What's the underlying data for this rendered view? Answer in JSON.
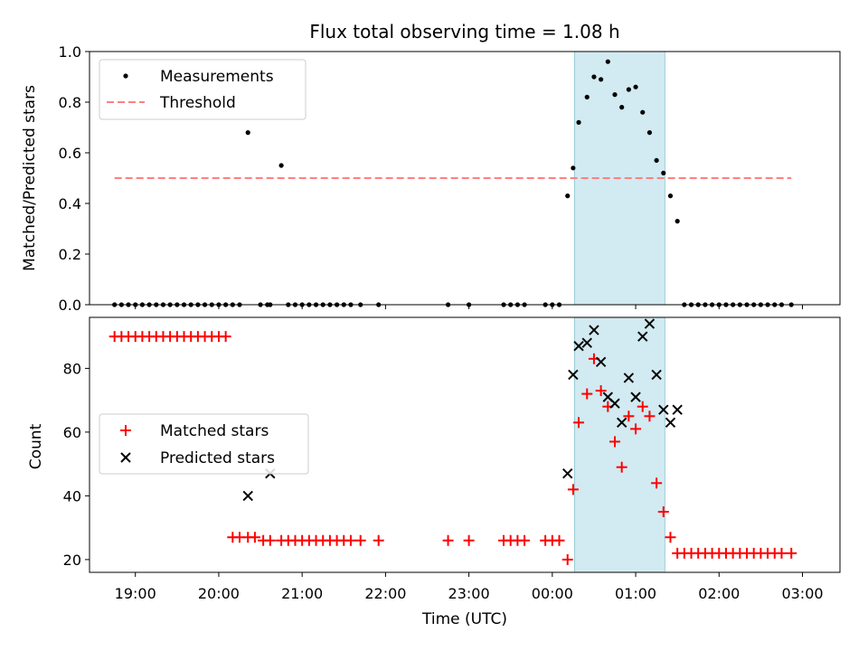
{
  "title": "Flux total observing time = 1.08 h",
  "colors": {
    "measurements": "#000000",
    "threshold": "#ff8080",
    "matched": "#ff0000",
    "predicted": "#000000",
    "shade": "#add8e6"
  },
  "chart_data": [
    {
      "type": "scatter",
      "ylabel": "Matched/Predicted stars",
      "xlim_hours": [
        18.45,
        27.45
      ],
      "ylim": [
        0,
        1.0
      ],
      "yticks": [
        "0.0",
        "0.2",
        "0.4",
        "0.6",
        "0.8",
        "1.0"
      ],
      "shaded_x_range": [
        "00:16",
        "01:21"
      ],
      "threshold": {
        "name": "Threshold",
        "y": 0.5,
        "x_range": [
          "18:45",
          "02:52"
        ]
      },
      "legend": {
        "placement": "upper-left",
        "entries": [
          "Measurements",
          "Threshold"
        ]
      },
      "series": [
        {
          "name": "Measurements",
          "x": [
            "18:45",
            "18:50",
            "18:55",
            "19:00",
            "19:05",
            "19:10",
            "19:15",
            "19:20",
            "19:25",
            "19:30",
            "19:35",
            "19:40",
            "19:45",
            "19:50",
            "19:55",
            "20:00",
            "20:05",
            "20:10",
            "20:15",
            "20:21",
            "20:30",
            "20:35",
            "20:37",
            "20:45",
            "20:50",
            "20:55",
            "21:00",
            "21:05",
            "21:10",
            "21:15",
            "21:20",
            "21:25",
            "21:30",
            "21:35",
            "21:42",
            "21:55",
            "22:45",
            "23:00",
            "23:25",
            "23:30",
            "23:35",
            "23:40",
            "23:55",
            "00:00",
            "00:05",
            "00:11",
            "00:15",
            "00:19",
            "00:25",
            "00:30",
            "00:35",
            "00:40",
            "00:45",
            "00:50",
            "00:55",
            "01:00",
            "01:05",
            "01:10",
            "01:15",
            "01:20",
            "01:25",
            "01:30",
            "01:35",
            "01:40",
            "01:45",
            "01:50",
            "01:55",
            "02:00",
            "02:05",
            "02:10",
            "02:15",
            "02:20",
            "02:25",
            "02:30",
            "02:35",
            "02:40",
            "02:45",
            "02:52"
          ],
          "y": [
            0,
            0,
            0,
            0,
            0,
            0,
            0,
            0,
            0,
            0,
            0,
            0,
            0,
            0,
            0,
            0,
            0,
            0,
            0,
            0.68,
            0,
            0,
            0,
            0.55,
            0,
            0,
            0,
            0,
            0,
            0,
            0,
            0,
            0,
            0,
            0,
            0,
            0,
            0,
            0,
            0,
            0,
            0,
            0,
            0,
            0,
            0.43,
            0.54,
            0.72,
            0.82,
            0.9,
            0.89,
            0.96,
            0.83,
            0.78,
            0.85,
            0.86,
            0.76,
            0.68,
            0.57,
            0.52,
            0.43,
            0.33,
            0,
            0,
            0,
            0,
            0,
            0,
            0,
            0,
            0,
            0,
            0,
            0,
            0,
            0,
            0,
            0
          ]
        }
      ]
    },
    {
      "type": "scatter",
      "ylabel": "Count",
      "xlabel": "Time (UTC)",
      "xlim_hours": [
        18.45,
        27.45
      ],
      "ylim": [
        16,
        96
      ],
      "yticks": [
        "20",
        "40",
        "60",
        "80"
      ],
      "xticks": [
        "19:00",
        "20:00",
        "21:00",
        "22:00",
        "23:00",
        "00:00",
        "01:00",
        "02:00",
        "03:00"
      ],
      "shaded_x_range": [
        "00:16",
        "01:21"
      ],
      "legend": {
        "placement": "center-left",
        "entries": [
          "Matched stars",
          "Predicted stars"
        ]
      },
      "series": [
        {
          "name": "Matched stars",
          "marker": "plus",
          "x": [
            "18:45",
            "18:50",
            "18:55",
            "19:00",
            "19:05",
            "19:10",
            "19:15",
            "19:20",
            "19:25",
            "19:30",
            "19:35",
            "19:40",
            "19:45",
            "19:50",
            "19:55",
            "20:00",
            "20:05",
            "20:10",
            "20:15",
            "20:21",
            "20:26",
            "20:32",
            "20:37",
            "20:45",
            "20:50",
            "20:55",
            "21:00",
            "21:05",
            "21:10",
            "21:15",
            "21:20",
            "21:25",
            "21:30",
            "21:35",
            "21:42",
            "21:55",
            "22:45",
            "23:00",
            "23:25",
            "23:30",
            "23:35",
            "23:40",
            "23:55",
            "00:00",
            "00:05",
            "00:11",
            "00:15",
            "00:19",
            "00:25",
            "00:30",
            "00:35",
            "00:40",
            "00:45",
            "00:50",
            "00:55",
            "01:00",
            "01:05",
            "01:10",
            "01:15",
            "01:20",
            "01:25",
            "01:30",
            "01:35",
            "01:40",
            "01:45",
            "01:50",
            "01:55",
            "02:00",
            "02:05",
            "02:10",
            "02:15",
            "02:20",
            "02:25",
            "02:30",
            "02:35",
            "02:40",
            "02:45",
            "02:52"
          ],
          "y": [
            90,
            90,
            90,
            90,
            90,
            90,
            90,
            90,
            90,
            90,
            90,
            90,
            90,
            90,
            90,
            90,
            90,
            27,
            27,
            27,
            27,
            26,
            26,
            26,
            26,
            26,
            26,
            26,
            26,
            26,
            26,
            26,
            26,
            26,
            26,
            26,
            26,
            26,
            26,
            26,
            26,
            26,
            26,
            26,
            26,
            20,
            42,
            63,
            72,
            83,
            73,
            68,
            57,
            49,
            65,
            61,
            68,
            65,
            44,
            35,
            27,
            22,
            22,
            22,
            22,
            22,
            22,
            22,
            22,
            22,
            22,
            22,
            22,
            22,
            22,
            22,
            22,
            22
          ]
        },
        {
          "name": "Predicted stars",
          "marker": "x",
          "x": [
            "20:21",
            "20:37",
            "00:11",
            "00:15",
            "00:19",
            "00:25",
            "00:30",
            "00:35",
            "00:40",
            "00:45",
            "00:50",
            "00:55",
            "01:00",
            "01:05",
            "01:10",
            "01:15",
            "01:20",
            "01:25",
            "01:30"
          ],
          "y": [
            40,
            47,
            47,
            78,
            87,
            88,
            92,
            82,
            71,
            69,
            63,
            77,
            71,
            90,
            94,
            78,
            67,
            63,
            67
          ]
        }
      ]
    }
  ]
}
